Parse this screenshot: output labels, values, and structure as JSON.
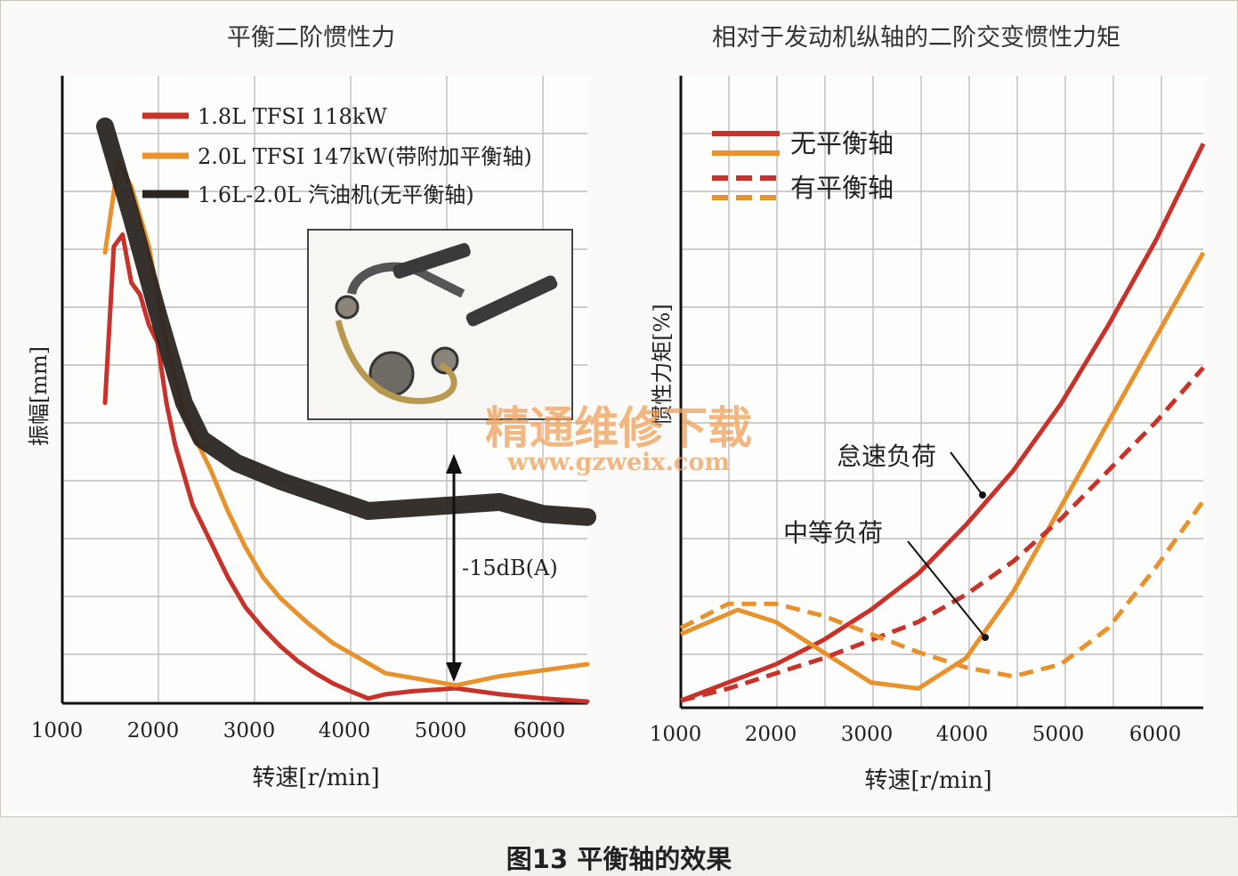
{
  "figure": {
    "caption": "图13 平衡轴的效果",
    "watermark": {
      "line1": "精通维修下载",
      "line2": "www.gzweix.com",
      "color": "#f0a05a"
    }
  },
  "chart_data": [
    {
      "type": "line",
      "title": "平衡二阶惯性力",
      "xlabel": "转速[r/min]",
      "ylabel": "振幅[mm]",
      "xlim": [
        1000,
        6500
      ],
      "x_ticks": [
        "1000",
        "2000",
        "3000",
        "4000",
        "5000",
        "6000"
      ],
      "grid": true,
      "legend_position": "top-left",
      "series": [
        {
          "name": "1.8L TFSI 118kW",
          "color": "#c8322a",
          "points": [
            [
              1000,
              5.0
            ],
            [
              1100,
              7.6
            ],
            [
              1200,
              7.8
            ],
            [
              1300,
              7.0
            ],
            [
              1400,
              6.8
            ],
            [
              1500,
              6.3
            ],
            [
              1600,
              6.0
            ],
            [
              1700,
              5.0
            ],
            [
              1800,
              4.3
            ],
            [
              1900,
              3.8
            ],
            [
              2000,
              3.3
            ],
            [
              2200,
              2.7
            ],
            [
              2400,
              2.1
            ],
            [
              2600,
              1.6
            ],
            [
              2800,
              1.25
            ],
            [
              3000,
              0.95
            ],
            [
              3200,
              0.7
            ],
            [
              3400,
              0.5
            ],
            [
              3600,
              0.33
            ],
            [
              3800,
              0.2
            ],
            [
              4000,
              0.08
            ],
            [
              4200,
              0.15
            ],
            [
              4500,
              0.2
            ],
            [
              5000,
              0.25
            ],
            [
              5500,
              0.15
            ],
            [
              6000,
              0.08
            ],
            [
              6500,
              0.03
            ]
          ]
        },
        {
          "name": "2.0L TFSI 147kW(带附加平衡轴)",
          "color": "#e8922e",
          "points": [
            [
              1000,
              7.5
            ],
            [
              1150,
              9.0
            ],
            [
              1300,
              8.6
            ],
            [
              1500,
              7.6
            ],
            [
              1700,
              6.0
            ],
            [
              1900,
              4.8
            ],
            [
              2000,
              4.5
            ],
            [
              2200,
              3.9
            ],
            [
              2400,
              3.2
            ],
            [
              2600,
              2.6
            ],
            [
              2800,
              2.1
            ],
            [
              3000,
              1.75
            ],
            [
              3300,
              1.35
            ],
            [
              3600,
              1.0
            ],
            [
              3900,
              0.75
            ],
            [
              4200,
              0.5
            ],
            [
              4600,
              0.4
            ],
            [
              5000,
              0.3
            ],
            [
              5500,
              0.45
            ],
            [
              6000,
              0.55
            ],
            [
              6500,
              0.65
            ]
          ]
        },
        {
          "name": "1.6L-2.0L  汽油机(无平衡轴)",
          "color": "#2b2622",
          "points": [
            [
              1000,
              9.6
            ],
            [
              1300,
              8.1
            ],
            [
              1600,
              6.5
            ],
            [
              1900,
              5.0
            ],
            [
              2100,
              4.4
            ],
            [
              2500,
              4.0
            ],
            [
              3000,
              3.7
            ],
            [
              3500,
              3.45
            ],
            [
              4000,
              3.2
            ],
            [
              4500,
              3.25
            ],
            [
              5000,
              3.3
            ],
            [
              5500,
              3.35
            ],
            [
              6000,
              3.15
            ],
            [
              6500,
              3.1
            ]
          ]
        }
      ],
      "annotation": "-15dB(A)",
      "inset": "balance-shaft mechanism photo"
    },
    {
      "type": "line",
      "title": "相对于发动机纵轴的二阶交变惯性力矩",
      "xlabel": "转速[r/min]",
      "ylabel": "惯性力矩[%]",
      "xlim": [
        1000,
        6500
      ],
      "x_ticks": [
        "1000",
        "2000",
        "3000",
        "4000",
        "5000",
        "6000"
      ],
      "grid": true,
      "legend": [
        {
          "label": "无平衡轴",
          "style": "solid"
        },
        {
          "label": "有平衡轴",
          "style": "dashed"
        }
      ],
      "legend_position": "top-left",
      "annotations": [
        "怠速负荷",
        "中等负荷"
      ],
      "series": [
        {
          "color": "#c8322a",
          "style": "solid",
          "load": "怠速负荷",
          "points": [
            [
              1000,
              0.0
            ],
            [
              1500,
              0.3
            ],
            [
              2000,
              0.6
            ],
            [
              2500,
              1.0
            ],
            [
              3000,
              1.5
            ],
            [
              3500,
              2.1
            ],
            [
              4000,
              2.9
            ],
            [
              4500,
              3.8
            ],
            [
              5000,
              4.9
            ],
            [
              5500,
              6.2
            ],
            [
              6000,
              7.6
            ],
            [
              6500,
              9.2
            ]
          ]
        },
        {
          "color": "#e8922e",
          "style": "solid",
          "load": "中等负荷",
          "points": [
            [
              1000,
              1.1
            ],
            [
              1600,
              1.5
            ],
            [
              2000,
              1.3
            ],
            [
              2500,
              0.8
            ],
            [
              3000,
              0.3
            ],
            [
              3500,
              0.2
            ],
            [
              4000,
              0.7
            ],
            [
              4500,
              1.8
            ],
            [
              5000,
              3.2
            ],
            [
              5500,
              4.6
            ],
            [
              6000,
              6.0
            ],
            [
              6500,
              7.4
            ]
          ]
        },
        {
          "color": "#c8322a",
          "style": "dashed",
          "load": "怠速负荷",
          "points": [
            [
              1000,
              0.0
            ],
            [
              1500,
              0.2
            ],
            [
              2000,
              0.45
            ],
            [
              2500,
              0.7
            ],
            [
              3000,
              1.0
            ],
            [
              3500,
              1.3
            ],
            [
              4000,
              1.75
            ],
            [
              4500,
              2.3
            ],
            [
              5000,
              3.0
            ],
            [
              5500,
              3.8
            ],
            [
              6000,
              4.6
            ],
            [
              6500,
              5.5
            ]
          ]
        },
        {
          "color": "#e8922e",
          "style": "dashed",
          "load": "中等负荷",
          "points": [
            [
              1000,
              1.2
            ],
            [
              1500,
              1.6
            ],
            [
              2000,
              1.6
            ],
            [
              2500,
              1.4
            ],
            [
              3000,
              1.1
            ],
            [
              3500,
              0.8
            ],
            [
              4000,
              0.55
            ],
            [
              4500,
              0.4
            ],
            [
              5000,
              0.6
            ],
            [
              5500,
              1.2
            ],
            [
              6000,
              2.2
            ],
            [
              6500,
              3.3
            ]
          ]
        }
      ]
    }
  ]
}
